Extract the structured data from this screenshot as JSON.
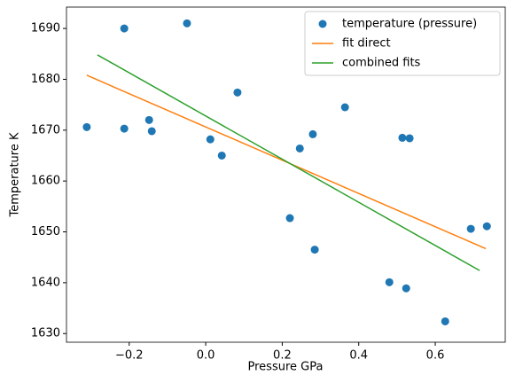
{
  "chart_data": {
    "type": "scatter",
    "x_label": "Pressure GPa",
    "y_label": "Temperature K",
    "xlim": [
      -0.364,
      0.783
    ],
    "ylim": [
      1628.3,
      1694.2
    ],
    "xticks": [
      {
        "value": -0.2,
        "label": "−0.2"
      },
      {
        "value": 0,
        "label": "0.0"
      },
      0.2,
      0.4,
      0.6
    ],
    "yticks": [
      1630,
      1640,
      1650,
      1660,
      1670,
      1680,
      1690
    ],
    "legend": "upper right",
    "series": [
      {
        "name": "temperature (pressure)",
        "type": "scatter",
        "color": "#1f77b4",
        "x": [
          -0.311,
          -0.213,
          -0.213,
          -0.148,
          -0.141,
          -0.049,
          0.012,
          0.042,
          0.083,
          0.22,
          0.246,
          0.28,
          0.285,
          0.364,
          0.48,
          0.514,
          0.533,
          0.524,
          0.626,
          0.693,
          0.735
        ],
        "values": [
          1670.6,
          1690,
          1670.3,
          1672.0,
          1669.8,
          1691.0,
          1668.2,
          1665.0,
          1677.4,
          1652.7,
          1666.4,
          1669.2,
          1646.5,
          1674.5,
          1640.1,
          1668.5,
          1668.4,
          1638.9,
          1632.4,
          1650.6,
          1651.1
        ]
      },
      {
        "name": "fit direct",
        "type": "line",
        "color": "#ff7f0e",
        "x": [
          -0.311,
          0.732
        ],
        "values": [
          1680.8,
          1646.7
        ]
      },
      {
        "name": "combined fits",
        "type": "line",
        "color": "#2ca02c",
        "x": [
          -0.283,
          0.716
        ],
        "values": [
          1684.8,
          1642.4
        ]
      }
    ]
  }
}
